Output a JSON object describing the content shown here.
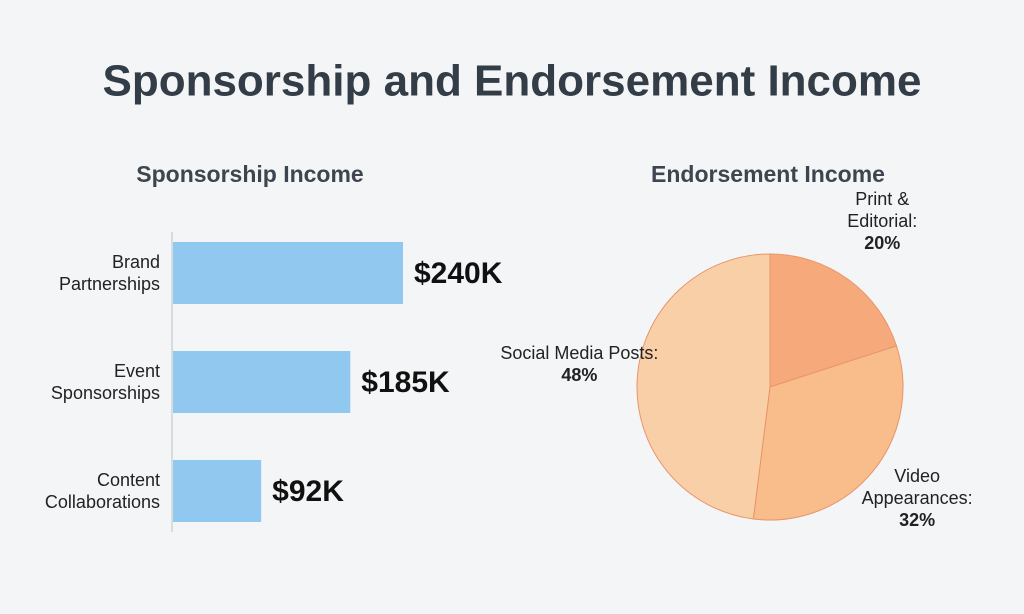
{
  "title": "Sponsorship and Endorsement Income",
  "chart_data": [
    {
      "type": "bar",
      "title": "Sponsorship Income",
      "categories": [
        "Brand\nPartnerships",
        "Event\nSponsorships",
        "Content\nCollaborations"
      ],
      "values": [
        240,
        185,
        92
      ],
      "value_labels": [
        "$240K",
        "$185K",
        "$92K"
      ],
      "color": "#90c8f0"
    },
    {
      "type": "pie",
      "title": "Endorsement Income",
      "categories": [
        "Print &\nEditorial:",
        "Video\nAppearances:",
        "Social Media Posts:"
      ],
      "values": [
        20,
        32,
        48
      ],
      "value_labels": [
        "20%",
        "32%",
        "48%"
      ],
      "colors": [
        "#f6aa7c",
        "#f8bd8b",
        "#f9cfa7"
      ]
    }
  ]
}
